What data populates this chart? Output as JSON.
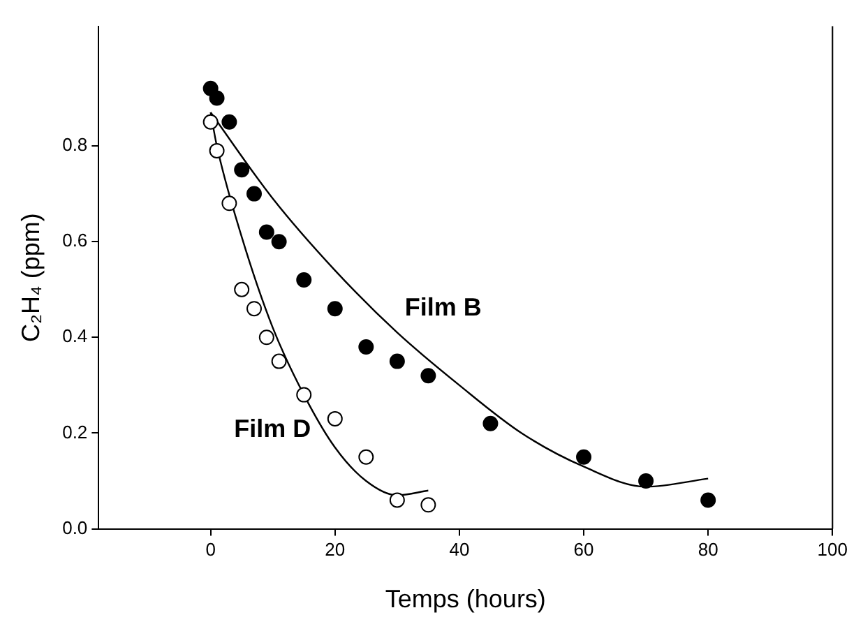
{
  "chart_data": {
    "type": "scatter",
    "xlabel": "Temps (hours)",
    "ylabel": "C₂H₄ (ppm)",
    "xlim": [
      -18,
      100
    ],
    "xticks": [
      0,
      20,
      40,
      60,
      80,
      100
    ],
    "ylim": [
      0,
      1.05
    ],
    "yticks": [
      {
        "value": 0,
        "label": "0.0"
      },
      {
        "value": 0.2,
        "label": "0.2"
      },
      {
        "value": 0.4,
        "label": "0.4"
      },
      {
        "value": 0.6,
        "label": "0.6"
      },
      {
        "value": 0.8,
        "label": "0.8"
      }
    ],
    "grid": false,
    "legend": false,
    "series": [
      {
        "name": "Film B",
        "marker": "circle",
        "color": "#000000",
        "x": [
          0,
          1,
          3,
          5,
          7,
          9,
          11,
          15,
          20,
          25,
          30,
          35,
          45,
          60,
          70,
          80
        ],
        "values": [
          0.92,
          0.9,
          0.85,
          0.75,
          0.7,
          0.62,
          0.6,
          0.52,
          0.46,
          0.38,
          0.35,
          0.32,
          0.22,
          0.15,
          0.1,
          0.06
        ]
      },
      {
        "name": "Film D",
        "marker": "circle",
        "color": "#ffffff",
        "x": [
          0,
          1,
          3,
          5,
          7,
          9,
          11,
          15,
          20,
          25,
          30,
          35
        ],
        "values": [
          0.85,
          0.79,
          0.68,
          0.5,
          0.46,
          0.4,
          0.35,
          0.28,
          0.23,
          0.15,
          0.06,
          0.05
        ]
      },
      {
        "type": "line",
        "marker": "none",
        "color": "#000000",
        "x": [
          0,
          10,
          20,
          30,
          40,
          50,
          60,
          70,
          80
        ],
        "values": [
          0.87,
          0.69,
          0.54,
          0.41,
          0.3,
          0.2,
          0.13,
          0.088,
          0.105
        ]
      },
      {
        "type": "line",
        "marker": "none",
        "color": "#000000",
        "x": [
          0,
          1,
          5,
          10,
          15,
          20,
          25,
          30,
          35
        ],
        "values": [
          0.87,
          0.8,
          0.61,
          0.42,
          0.28,
          0.17,
          0.1,
          0.07,
          0.08
        ]
      }
    ]
  }
}
